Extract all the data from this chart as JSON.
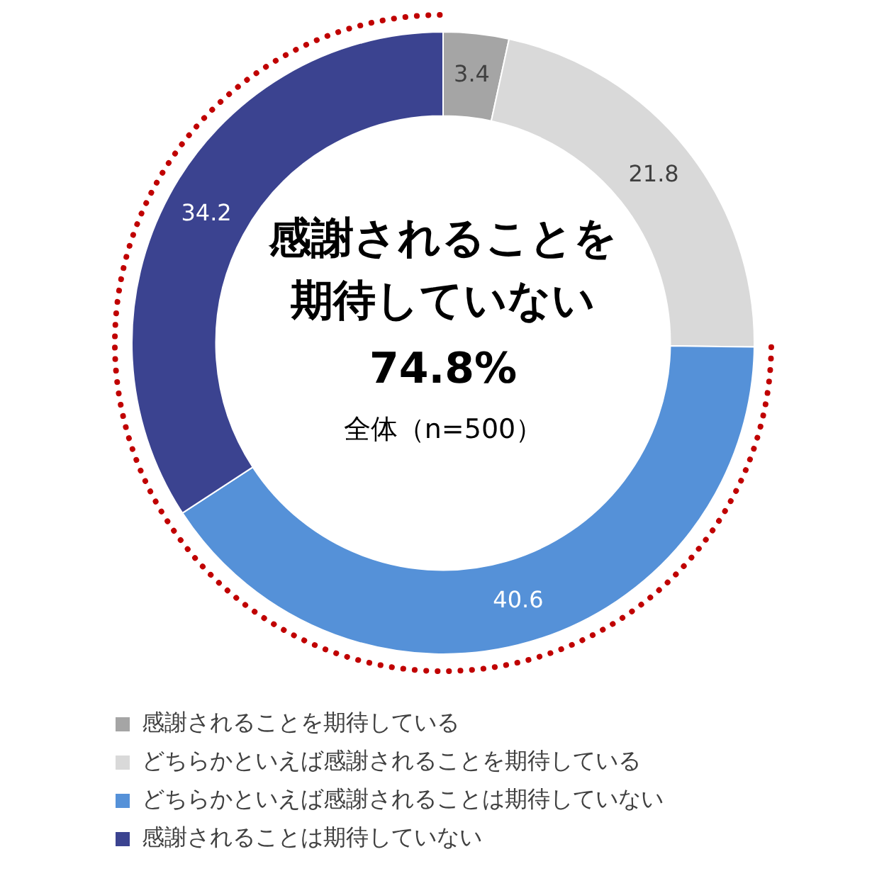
{
  "chart_data": {
    "type": "donut",
    "categories": [
      "感謝されることを期待している",
      "どちらかといえば感謝されることを期待している",
      "どちらかといえば感謝されることは期待していない",
      "感謝されることは期待していない"
    ],
    "values": [
      3.4,
      21.8,
      40.6,
      34.2
    ],
    "colors": [
      "#a5a5a5",
      "#d9d9d9",
      "#5591d8",
      "#3b4390"
    ],
    "data_labels": true,
    "legend": "bottom",
    "annotations": [
      "感謝されることを",
      "期待していない",
      "74.8%",
      "全体（n=500）"
    ]
  }
}
